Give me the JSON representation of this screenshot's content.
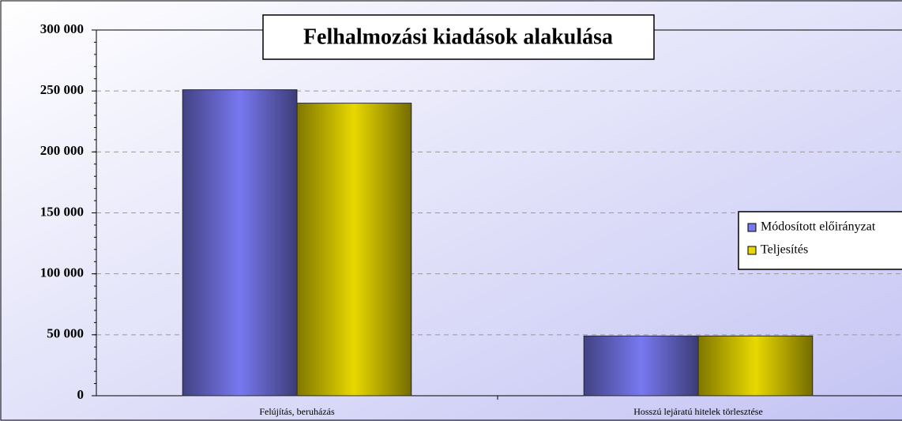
{
  "chart_data": {
    "type": "bar",
    "title": "Felhalmozási kiadások alakulása",
    "categories": [
      "Felújítás, beruházás",
      "Hosszú lejáratú hitelek törlesztése"
    ],
    "series": [
      {
        "name": "Módosított előirányzat",
        "color": "#7878f0",
        "values": [
          251000,
          49000
        ]
      },
      {
        "name": "Teljesítés",
        "color": "#e8d800",
        "values": [
          240000,
          49000
        ]
      }
    ],
    "ylim": [
      0,
      300000
    ],
    "yticks": [
      0,
      {
        "value": 50000,
        "label": "50 000"
      },
      {
        "value": 100000,
        "label": "100 000"
      },
      {
        "value": 150000,
        "label": "150 000"
      },
      {
        "value": 200000,
        "label": "200 000"
      },
      {
        "value": 250000,
        "label": "250 000"
      },
      {
        "value": 300000,
        "label": "300 000"
      }
    ],
    "grid": true,
    "legend": "right"
  }
}
